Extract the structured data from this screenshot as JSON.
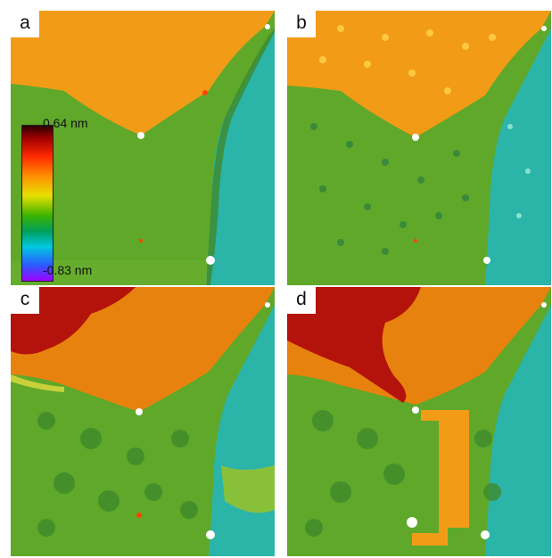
{
  "panels": [
    {
      "label": "a"
    },
    {
      "label": "b"
    },
    {
      "label": "c"
    },
    {
      "label": "d"
    }
  ],
  "colorbar": {
    "max_label": "0.64 nm",
    "min_label": "-0.83 nm",
    "stops": [
      "#2b0000",
      "#a00000",
      "#ff2a00",
      "#ff8c00",
      "#e8e000",
      "#3cb400",
      "#00a05a",
      "#00c8e0",
      "#2a5aff",
      "#a000ff"
    ]
  },
  "colors": {
    "orange": "#f29b17",
    "orange_dark": "#e8820e",
    "green": "#5fa82a",
    "green_dark": "#3f8a2c",
    "cyan": "#2bb5a8",
    "cyan_light": "#45c9b8",
    "red": "#b3130a",
    "yellow": "#c8d13a",
    "lime": "#88c03a"
  }
}
